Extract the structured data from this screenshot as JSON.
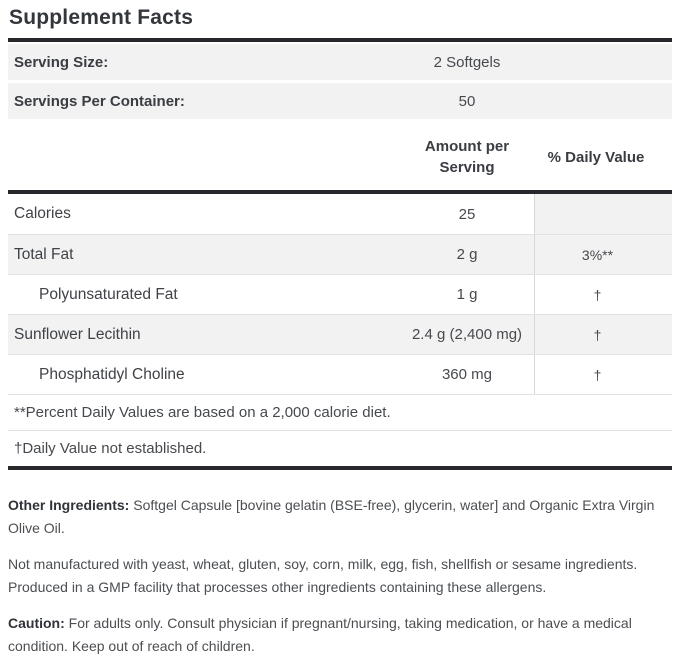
{
  "title": "Supplement Facts",
  "serving_info": [
    {
      "label": "Serving Size:",
      "value": "2 Softgels"
    },
    {
      "label": "Servings Per Container:",
      "value": "50"
    }
  ],
  "column_headers": {
    "amount_line1": "Amount per",
    "amount_line2": "Serving",
    "daily_value": "% Daily Value"
  },
  "nutrients": [
    {
      "name": "Calories",
      "amount": "25",
      "daily_value": "",
      "indent": false
    },
    {
      "name": "Total Fat",
      "amount": "2 g",
      "daily_value": "3%**",
      "indent": false
    },
    {
      "name": "Polyunsaturated Fat",
      "amount": "1 g",
      "daily_value": "†",
      "indent": true
    },
    {
      "name": "Sunflower Lecithin",
      "amount": "2.4 g (2,400 mg)",
      "daily_value": "†",
      "indent": false
    },
    {
      "name": "Phosphatidyl Choline",
      "amount": "360 mg",
      "daily_value": "†",
      "indent": true
    }
  ],
  "footnotes": [
    "**Percent Daily Values are based on a 2,000 calorie diet.",
    "†Daily Value not established."
  ],
  "paragraphs": [
    {
      "label": "Other Ingredients:",
      "text": "Softgel Capsule [bovine gelatin (BSE-free), glycerin, water] and Organic Extra Virgin Olive Oil."
    },
    {
      "label": "",
      "text": "Not manufactured with yeast, wheat, gluten, soy, corn, milk, egg, fish, shellfish or sesame ingredients. Produced in a GMP facility that processes other ingredients containing these allergens."
    },
    {
      "label": "Caution:",
      "text": "For adults only. Consult physician if pregnant/nursing, taking medication, or have a medical condition. Keep out of reach of children."
    }
  ],
  "colors": {
    "rule_dark": "#26282c",
    "row_shaded": "#f2f2f2",
    "divider": "#d8d8d8",
    "title_text": "#33363b",
    "body_text": "#46494e"
  }
}
